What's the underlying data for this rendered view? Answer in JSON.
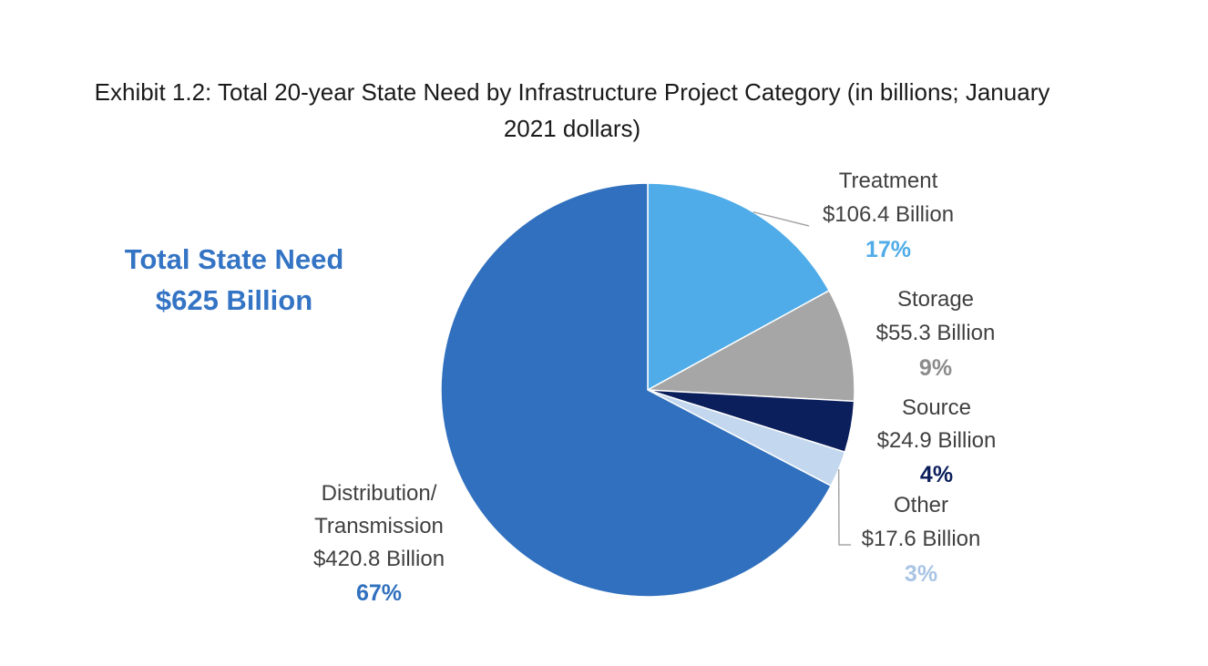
{
  "chart_data": {
    "type": "pie",
    "title_line1": "Exhibit 1.2: Total 20-year State Need by Infrastructure Project Category (in billions; January",
    "title_line2": "2021 dollars)",
    "total": {
      "line1": "Total State Need",
      "line2": "$625 Billion",
      "color": "#3474C4"
    },
    "start_angle_deg": 0,
    "direction": "clockwise",
    "slices": [
      {
        "key": "treatment",
        "name_lines": [
          "Treatment"
        ],
        "amount": "$106.4 Billion",
        "value": 106.4,
        "pct": "17%",
        "color": "#4FACE8",
        "pct_color": "#4FACE8"
      },
      {
        "key": "storage",
        "name_lines": [
          "Storage"
        ],
        "amount": "$55.3 Billion",
        "value": 55.3,
        "pct": "9%",
        "color": "#A6A6A6",
        "pct_color": "#8C8C8C"
      },
      {
        "key": "source",
        "name_lines": [
          "Source"
        ],
        "amount": "$24.9 Billion",
        "value": 24.9,
        "pct": "4%",
        "color": "#0B1F5C",
        "pct_color": "#0B1F5C"
      },
      {
        "key": "other",
        "name_lines": [
          "Other"
        ],
        "amount": "$17.6 Billion",
        "value": 17.6,
        "pct": "3%",
        "color": "#C3D7EE",
        "pct_color": "#A9C4E4"
      },
      {
        "key": "distribution",
        "name_lines": [
          "Distribution/",
          "Transmission"
        ],
        "amount": "$420.8 Billion",
        "value": 420.8,
        "pct": "67%",
        "color": "#3070BE",
        "pct_color": "#3070BE"
      }
    ]
  }
}
